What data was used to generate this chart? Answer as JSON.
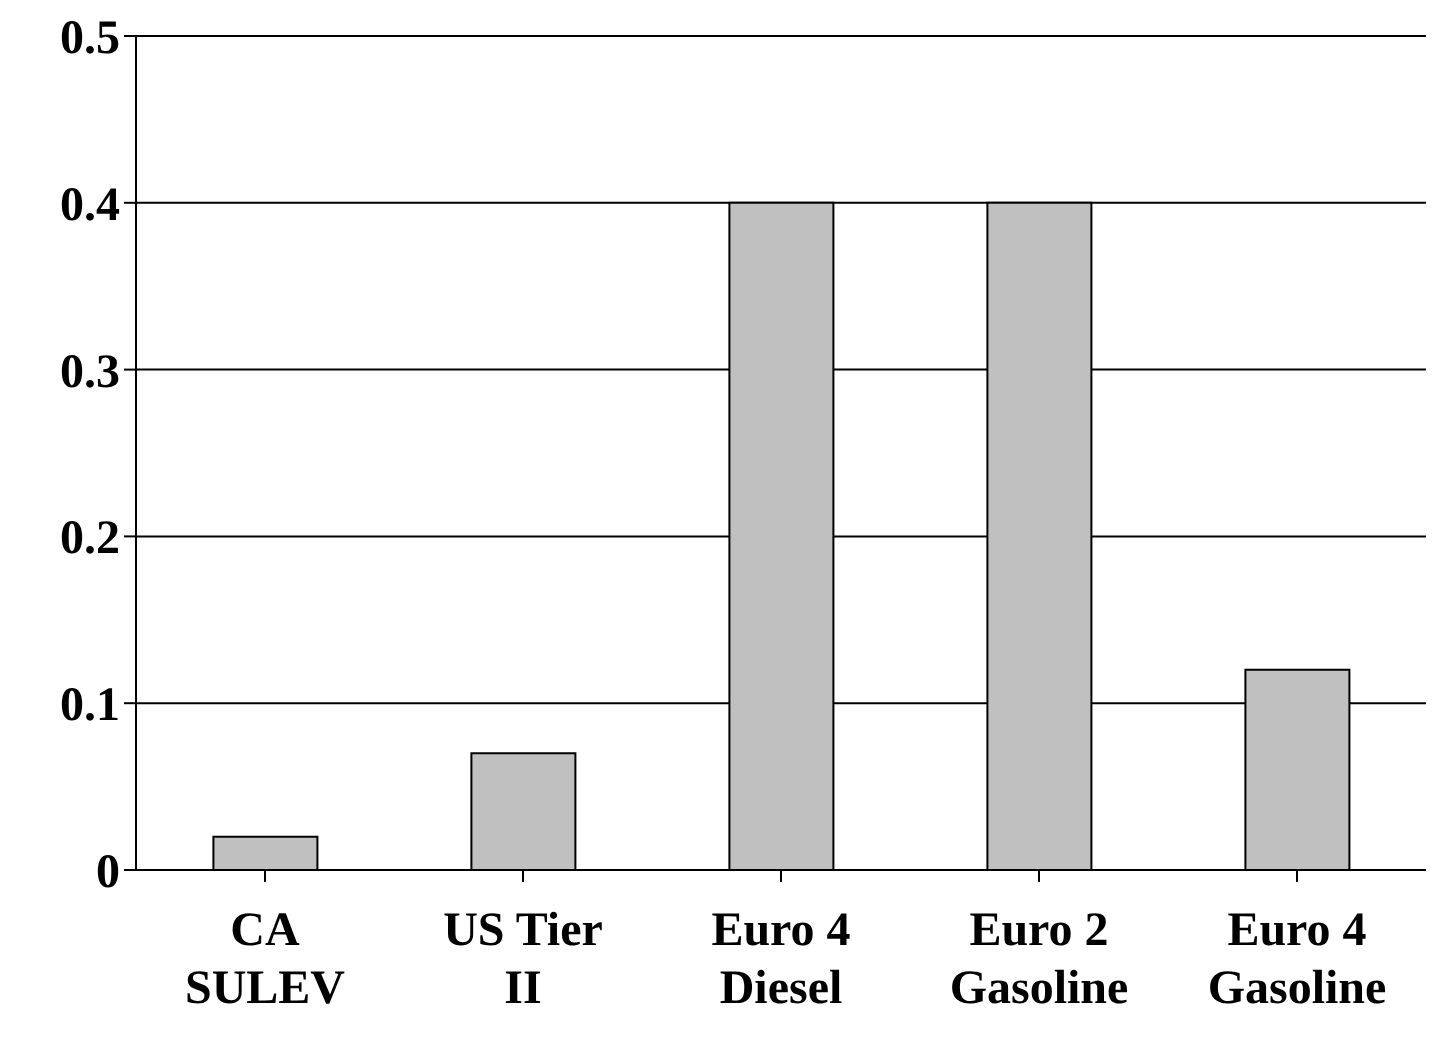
{
  "chart_data": {
    "type": "bar",
    "categories": [
      "CA SULEV",
      "US Tier II",
      "Euro 4 Diesel",
      "Euro 2 Gasoline",
      "Euro 4 Gasoline"
    ],
    "values": [
      0.02,
      0.07,
      0.4,
      0.4,
      0.12
    ],
    "color": "#c0c0c0",
    "ylim": [
      0,
      0.5
    ],
    "yticks": [
      0,
      0.1,
      0.2,
      0.3,
      0.4,
      0.5
    ],
    "grid": "y"
  }
}
